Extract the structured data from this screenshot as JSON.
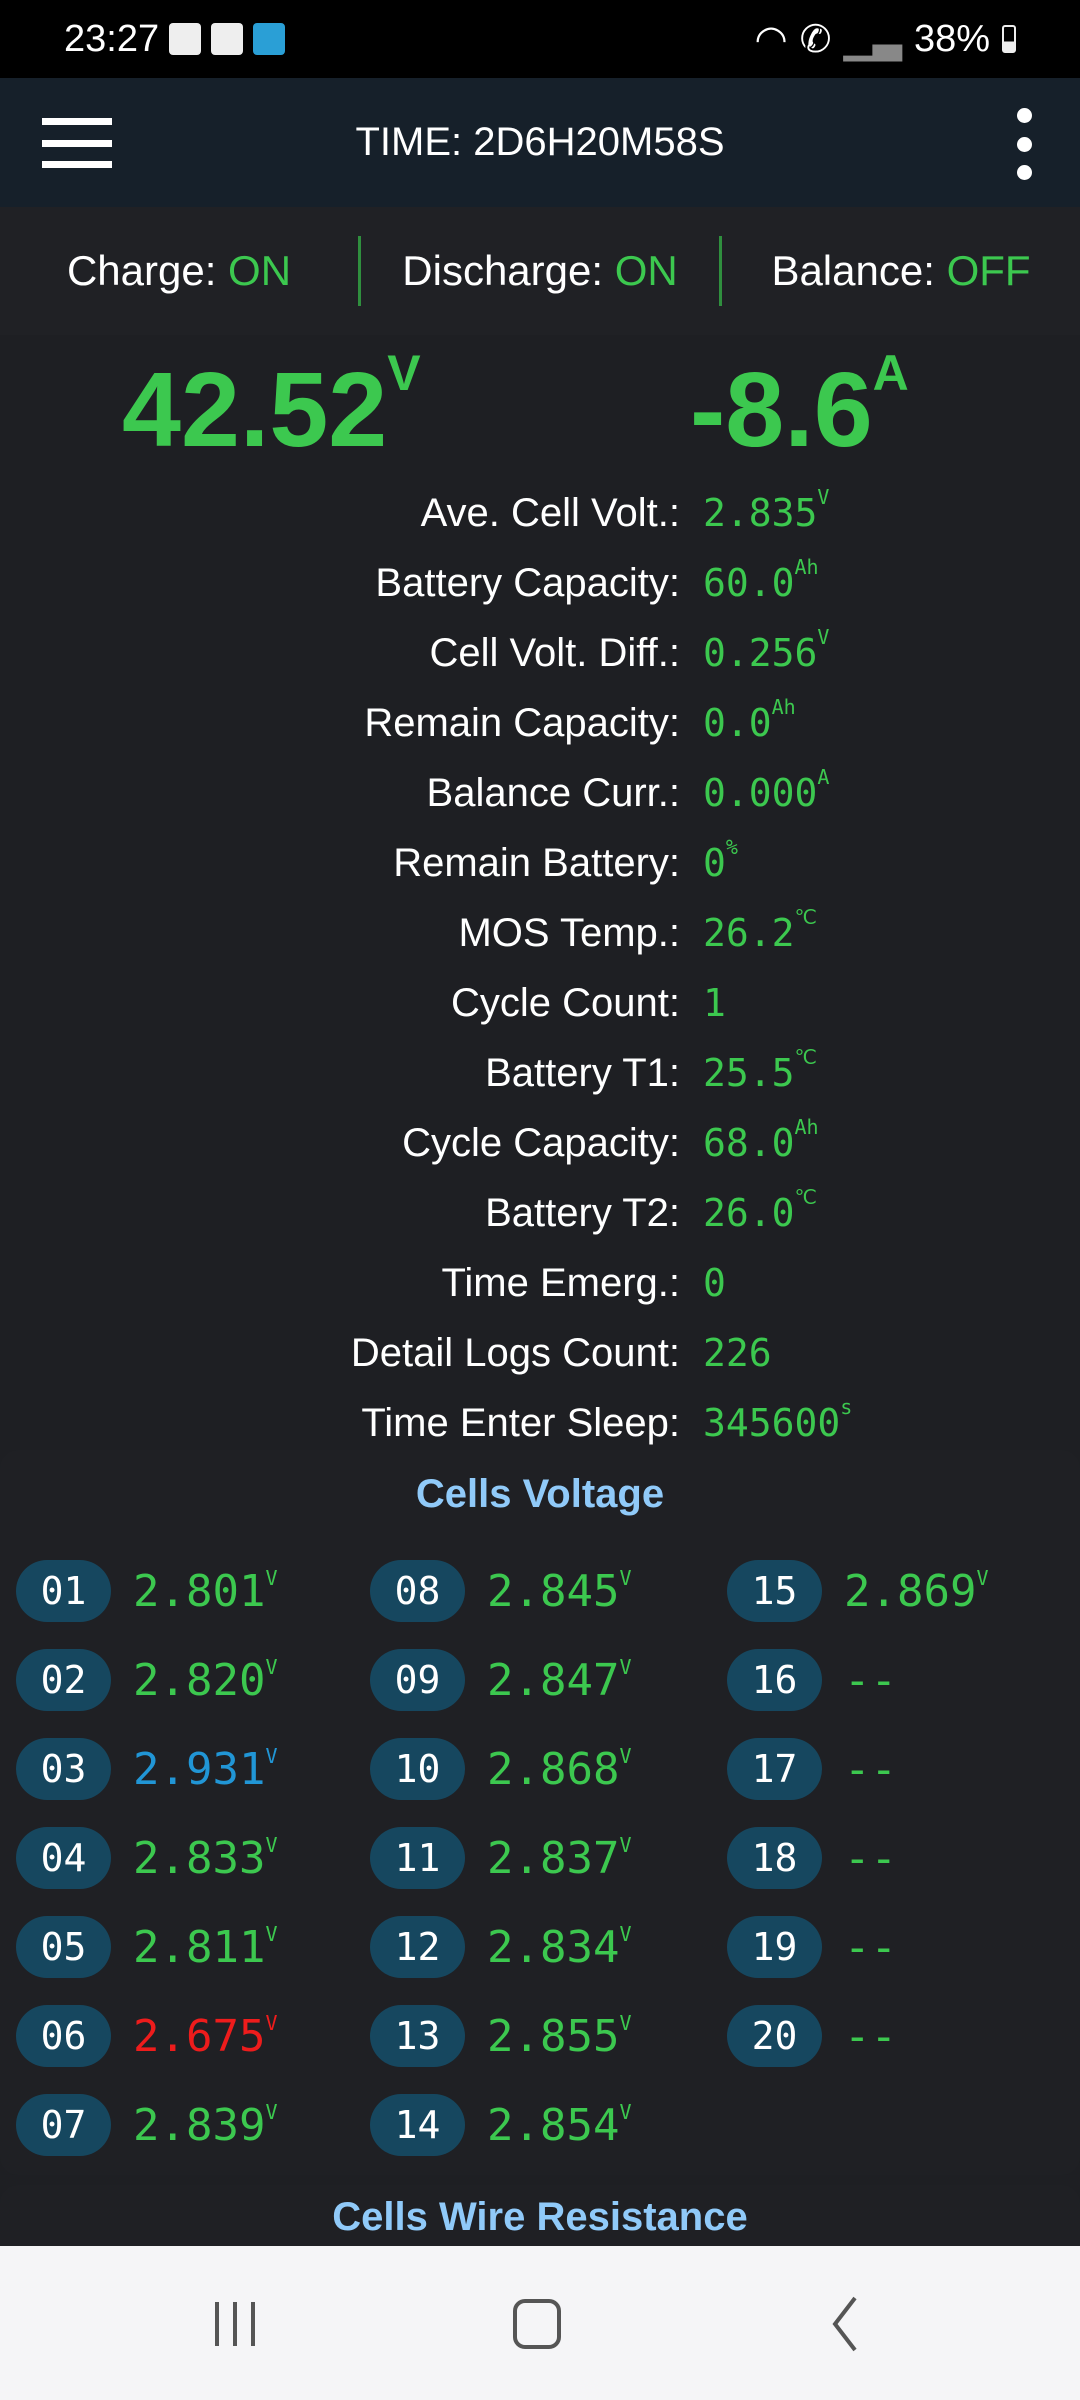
{
  "status_bar": {
    "time": "23:27",
    "battery": "38%"
  },
  "app_bar": {
    "title": "TIME: 2D6H20M58S"
  },
  "states": [
    {
      "label": "Charge: ",
      "value": "ON"
    },
    {
      "label": "Discharge: ",
      "value": "ON"
    },
    {
      "label": "Balance: ",
      "value": "OFF"
    }
  ],
  "summary": {
    "voltage": "42.52",
    "voltage_unit": "V",
    "current": "-8.6",
    "current_unit": "A"
  },
  "details": [
    {
      "label": "Ave. Cell Volt.:",
      "value": "2.835",
      "unit": "V"
    },
    {
      "label": "Battery Capacity:",
      "value": "60.0",
      "unit": "Ah"
    },
    {
      "label": "Cell Volt. Diff.:",
      "value": "0.256",
      "unit": "V"
    },
    {
      "label": "Remain Capacity:",
      "value": "0.0",
      "unit": "Ah"
    },
    {
      "label": "Balance Curr.:",
      "value": "0.000",
      "unit": "A"
    },
    {
      "label": "Remain Battery:",
      "value": "0",
      "unit": "%"
    },
    {
      "label": "MOS Temp.:",
      "value": "26.2",
      "unit": "℃"
    },
    {
      "label": "Cycle Count:",
      "value": "1",
      "unit": ""
    },
    {
      "label": "Battery T1:",
      "value": "25.5",
      "unit": "℃"
    },
    {
      "label": "Cycle Capacity:",
      "value": "68.0",
      "unit": "Ah"
    },
    {
      "label": "Battery T2:",
      "value": "26.0",
      "unit": "℃"
    },
    {
      "label": "Time Emerg.:",
      "value": "0",
      "unit": ""
    },
    {
      "label": "Detail Logs Count:",
      "value": "226",
      "unit": ""
    },
    {
      "label": "Time Enter Sleep:",
      "value": "345600",
      "unit": "s"
    }
  ],
  "cells": {
    "title": "Cells Voltage",
    "items": [
      {
        "n": "01",
        "v": "2.801",
        "u": "V",
        "color": "#3cc84f"
      },
      {
        "n": "02",
        "v": "2.820",
        "u": "V",
        "color": "#3cc84f"
      },
      {
        "n": "03",
        "v": "2.931",
        "u": "V",
        "color": "#2196d6"
      },
      {
        "n": "04",
        "v": "2.833",
        "u": "V",
        "color": "#3cc84f"
      },
      {
        "n": "05",
        "v": "2.811",
        "u": "V",
        "color": "#3cc84f"
      },
      {
        "n": "06",
        "v": "2.675",
        "u": "V",
        "color": "#ee1c1c"
      },
      {
        "n": "07",
        "v": "2.839",
        "u": "V",
        "color": "#3cc84f"
      },
      {
        "n": "08",
        "v": "2.845",
        "u": "V",
        "color": "#3cc84f"
      },
      {
        "n": "09",
        "v": "2.847",
        "u": "V",
        "color": "#3cc84f"
      },
      {
        "n": "10",
        "v": "2.868",
        "u": "V",
        "color": "#3cc84f"
      },
      {
        "n": "11",
        "v": "2.837",
        "u": "V",
        "color": "#3cc84f"
      },
      {
        "n": "12",
        "v": "2.834",
        "u": "V",
        "color": "#3cc84f"
      },
      {
        "n": "13",
        "v": "2.855",
        "u": "V",
        "color": "#3cc84f"
      },
      {
        "n": "14",
        "v": "2.854",
        "u": "V",
        "color": "#3cc84f"
      },
      {
        "n": "15",
        "v": "2.869",
        "u": "V",
        "color": "#3cc84f"
      },
      {
        "n": "16",
        "v": "--",
        "u": "",
        "color": "#3cc84f"
      },
      {
        "n": "17",
        "v": "--",
        "u": "",
        "color": "#3cc84f"
      },
      {
        "n": "18",
        "v": "--",
        "u": "",
        "color": "#3cc84f"
      },
      {
        "n": "19",
        "v": "--",
        "u": "",
        "color": "#3cc84f"
      },
      {
        "n": "20",
        "v": "--",
        "u": "",
        "color": "#3cc84f"
      }
    ]
  },
  "wire_resistance": {
    "title": "Cells Wire Resistance"
  }
}
